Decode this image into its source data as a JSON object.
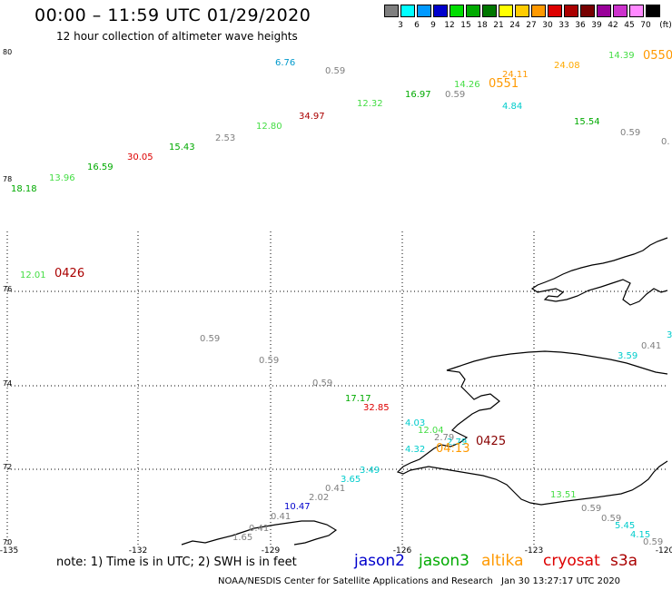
{
  "header": {
    "title": "00:00 – 11:59 UTC 01/29/2020",
    "subtitle": "12 hour collection of altimeter wave heights"
  },
  "legend": {
    "unit": "(ft)",
    "bins": [
      {
        "label": "3",
        "color": "#7f7f7f"
      },
      {
        "label": "6",
        "color": "#00ffff"
      },
      {
        "label": "9",
        "color": "#0099ff"
      },
      {
        "label": "12",
        "color": "#0000cc"
      },
      {
        "label": "15",
        "color": "#00dd00"
      },
      {
        "label": "18",
        "color": "#00aa00"
      },
      {
        "label": "21",
        "color": "#007700"
      },
      {
        "label": "24",
        "color": "#ffff00"
      },
      {
        "label": "27",
        "color": "#ffcc00"
      },
      {
        "label": "30",
        "color": "#ff9900"
      },
      {
        "label": "33",
        "color": "#dd0000"
      },
      {
        "label": "36",
        "color": "#aa0000"
      },
      {
        "label": "39",
        "color": "#770000"
      },
      {
        "label": "42",
        "color": "#990099"
      },
      {
        "label": "45",
        "color": "#cc33cc"
      },
      {
        "label": "70",
        "color": "#ff88ff"
      },
      {
        "label": "",
        "color": "#000000"
      }
    ]
  },
  "axes": {
    "lat_labels": [
      "80",
      "78",
      "76",
      "74",
      "72",
      "70"
    ],
    "lon_labels": [
      "-135",
      "-132",
      "-129",
      "-126",
      "-123",
      "-120"
    ]
  },
  "observations": [
    {
      "text": "6.76",
      "color": "#0099cc"
    },
    {
      "text": "0.59",
      "color": "#7f7f7f"
    },
    {
      "text": "24.11",
      "color": "#ff9900"
    },
    {
      "text": "0551",
      "color": "#ff9900"
    },
    {
      "text": "24.08",
      "color": "#ffaa00"
    },
    {
      "text": "14.39",
      "color": "#44dd44"
    },
    {
      "text": "0550",
      "color": "#ff9900"
    },
    {
      "text": "16.97",
      "color": "#00aa00"
    },
    {
      "text": "0.59",
      "color": "#7f7f7f"
    },
    {
      "text": "14.26",
      "color": "#44dd44"
    },
    {
      "text": "12.32",
      "color": "#44dd44"
    },
    {
      "text": "4.84",
      "color": "#00cccc"
    },
    {
      "text": "34.97",
      "color": "#aa0000"
    },
    {
      "text": "15.54",
      "color": "#00aa00"
    },
    {
      "text": "0.59",
      "color": "#7f7f7f"
    },
    {
      "text": "0.",
      "color": "#7f7f7f"
    },
    {
      "text": "12.80",
      "color": "#44dd44"
    },
    {
      "text": "2.53",
      "color": "#7f7f7f"
    },
    {
      "text": "15.43",
      "color": "#00aa00"
    },
    {
      "text": "30.05",
      "color": "#dd0000"
    },
    {
      "text": "16.59",
      "color": "#00aa00"
    },
    {
      "text": "13.96",
      "color": "#44dd44"
    },
    {
      "text": "18.18",
      "color": "#00aa00"
    },
    {
      "text": "12.01",
      "color": "#44dd44"
    },
    {
      "text": "0426",
      "color": "#aa0000"
    },
    {
      "text": "0.59",
      "color": "#7f7f7f"
    },
    {
      "text": "0.59",
      "color": "#7f7f7f"
    },
    {
      "text": "0.59",
      "color": "#7f7f7f"
    },
    {
      "text": "17.17",
      "color": "#00aa00"
    },
    {
      "text": "32.85",
      "color": "#dd0000"
    },
    {
      "text": "4.03",
      "color": "#00cccc"
    },
    {
      "text": "12.04",
      "color": "#44dd44"
    },
    {
      "text": "2.79",
      "color": "#7f7f7f"
    },
    {
      "text": "2.79",
      "color": "#00cccc"
    },
    {
      "text": "4.32",
      "color": "#00cccc"
    },
    {
      "text": "04:13",
      "color": "#ff9900"
    },
    {
      "text": "0425",
      "color": "#880000"
    },
    {
      "text": "0.41",
      "color": "#7f7f7f"
    },
    {
      "text": "3.59",
      "color": "#00cccc"
    },
    {
      "text": "3.",
      "color": "#00cccc"
    },
    {
      "text": "3.49",
      "color": "#00cccc"
    },
    {
      "text": "3.65",
      "color": "#00cccc"
    },
    {
      "text": "0.41",
      "color": "#7f7f7f"
    },
    {
      "text": "2.02",
      "color": "#7f7f7f"
    },
    {
      "text": "10.47",
      "color": "#0000cc"
    },
    {
      "text": "0.41",
      "color": "#7f7f7f"
    },
    {
      "text": "0.41",
      "color": "#7f7f7f"
    },
    {
      "text": "1.65",
      "color": "#7f7f7f"
    },
    {
      "text": "13.51",
      "color": "#44dd44"
    },
    {
      "text": "0.59",
      "color": "#7f7f7f"
    },
    {
      "text": "0.59",
      "color": "#7f7f7f"
    },
    {
      "text": "5.45",
      "color": "#00cccc"
    },
    {
      "text": "4.15",
      "color": "#00cccc"
    },
    {
      "text": "0.59",
      "color": "#7f7f7f"
    }
  ],
  "footer": {
    "note": "note: 1) Time is in UTC; 2) SWH is in feet",
    "satellites": [
      {
        "name": "jason2",
        "color": "#0000cc"
      },
      {
        "name": "jason3",
        "color": "#00aa00"
      },
      {
        "name": "altika",
        "color": "#ff9900"
      },
      {
        "name": "cryosat",
        "color": "#dd0000"
      },
      {
        "name": "s3a",
        "color": "#aa0000"
      }
    ],
    "credit": "NOAA/NESDIS Center for Satellite Applications and Research",
    "timestamp": "Jan 30 13:27:17 UTC 2020"
  }
}
